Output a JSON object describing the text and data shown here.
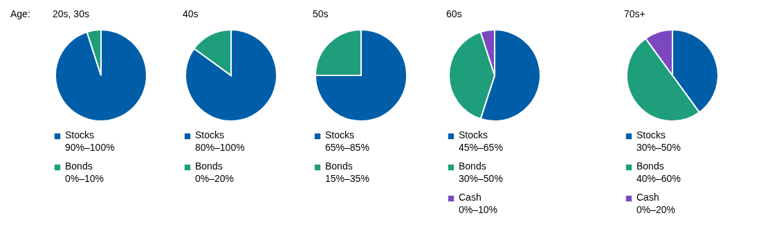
{
  "chart_data": [
    {
      "type": "pie",
      "title": "20s, 30s",
      "annotations": [
        "90%–100%",
        "0%–10%",
        "Age:"
      ],
      "categories": [
        "Stocks",
        "Bonds"
      ],
      "values": [
        95,
        5
      ],
      "colors": [
        "#005ea8",
        "#1f9e7c"
      ],
      "legend": "bottom"
    },
    {
      "type": "pie",
      "title": "40s",
      "annotations": [
        "80%–100%",
        "0%–20%"
      ],
      "categories": [
        "Stocks",
        "Bonds"
      ],
      "values": [
        85,
        15
      ],
      "colors": [
        "#005ea8",
        "#1f9e7c"
      ],
      "legend": "bottom"
    },
    {
      "type": "pie",
      "title": "50s",
      "annotations": [
        "65%–85%",
        "15%–35%"
      ],
      "categories": [
        "Stocks",
        "Bonds"
      ],
      "values": [
        75,
        25
      ],
      "colors": [
        "#005ea8",
        "#1f9e7c"
      ],
      "legend": "bottom"
    },
    {
      "type": "pie",
      "title": "60s",
      "annotations": [
        "45%–65%",
        "30%–50%",
        "0%–10%"
      ],
      "categories": [
        "Stocks",
        "Bonds",
        "Cash"
      ],
      "values": [
        55,
        40,
        5
      ],
      "colors": [
        "#005ea8",
        "#1f9e7c",
        "#7b48bf"
      ],
      "legend": "bottom"
    },
    {
      "type": "pie",
      "title": "70s+",
      "annotations": [
        "30%–50%",
        "40%–60%",
        "0%–20%"
      ],
      "categories": [
        "Stocks",
        "Bonds",
        "Cash"
      ],
      "values": [
        40,
        50,
        10
      ],
      "colors": [
        "#005ea8",
        "#1f9e7c",
        "#7b48bf"
      ],
      "legend": "bottom"
    }
  ]
}
